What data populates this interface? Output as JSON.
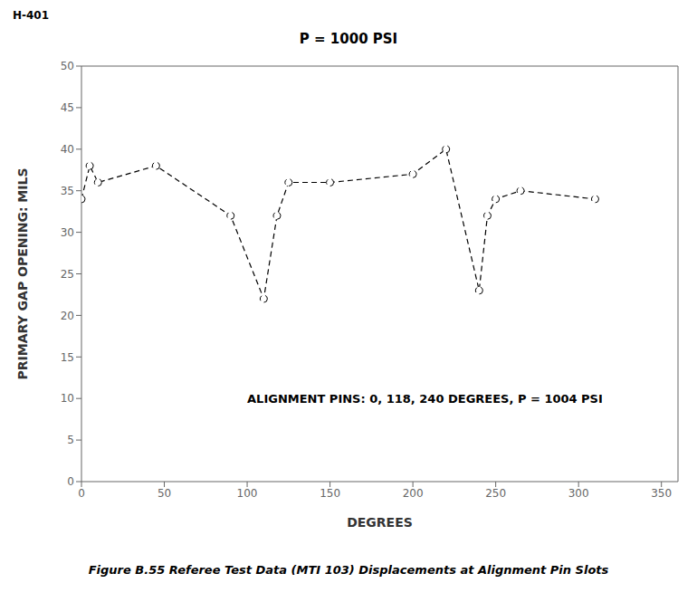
{
  "chart_data": {
    "type": "line",
    "title": "P = 1000 PSI",
    "header": "H-401",
    "x_label": "DEGREES",
    "y_label": "PRIMARY GAP OPENING:  MILS",
    "caption": "Figure B.55  Referee Test Data (MTI 103) Displacements at Alignment Pin Slots",
    "annotations": [
      {
        "text": "ALIGNMENT PINS:  0, 118, 240 DEGREES, P = 1004 PSI",
        "x": 100,
        "y": 10
      }
    ],
    "x": [
      0,
      5,
      10,
      45,
      90,
      110,
      118,
      125,
      150,
      200,
      220,
      240,
      245,
      250,
      265,
      310
    ],
    "series": [
      {
        "values": [
          34,
          38,
          36,
          38,
          32,
          22,
          32,
          36,
          36,
          37,
          40,
          23,
          32,
          34,
          35,
          34
        ],
        "color": "#000000",
        "line_style": "dashed",
        "marker": "circle"
      }
    ],
    "xlim": [
      0,
      360
    ],
    "ylim": [
      0,
      50
    ],
    "xticks": [
      0,
      50,
      100,
      150,
      200,
      250,
      300,
      350
    ],
    "yticks": [
      0,
      5,
      10,
      15,
      20,
      25,
      30,
      35,
      40,
      45,
      50
    ],
    "grid": false
  }
}
